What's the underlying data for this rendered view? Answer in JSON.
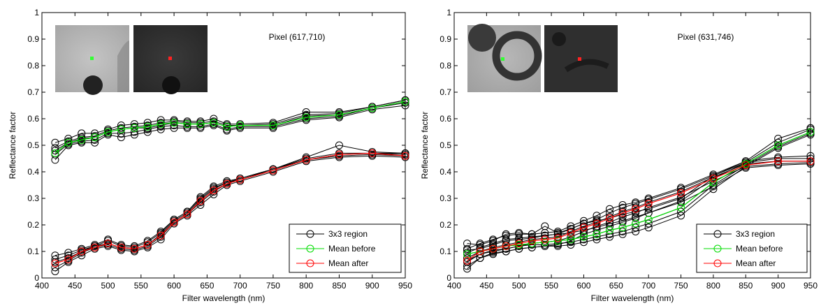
{
  "chart_data": [
    {
      "type": "line",
      "title": "Pixel (617,710)",
      "xlabel": "Filter wavelength (nm)",
      "ylabel": "Reflectance factor",
      "xlim": [
        400,
        950
      ],
      "ylim": [
        0,
        1
      ],
      "xticks": [
        400,
        450,
        500,
        550,
        600,
        650,
        700,
        750,
        800,
        850,
        900,
        950
      ],
      "yticks": [
        0,
        0.1,
        0.2,
        0.3,
        0.4,
        0.5,
        0.6,
        0.7,
        0.8,
        0.9,
        1
      ],
      "x": [
        420,
        440,
        460,
        480,
        500,
        520,
        540,
        560,
        580,
        600,
        620,
        640,
        660,
        680,
        700,
        750,
        800,
        850,
        900,
        950
      ],
      "legend": {
        "placement": "bottom-right",
        "entries": [
          "3x3 region",
          "Mean before",
          "Mean after"
        ]
      },
      "series": [
        {
          "name": "Mean before",
          "color": "#00dd00",
          "values": [
            0.47,
            0.51,
            0.52,
            0.53,
            0.55,
            0.56,
            0.565,
            0.57,
            0.58,
            0.585,
            0.58,
            0.58,
            0.585,
            0.57,
            0.575,
            0.575,
            0.605,
            0.615,
            0.64,
            0.665
          ]
        },
        {
          "name": "Mean after",
          "color": "#ff0000",
          "values": [
            0.055,
            0.07,
            0.1,
            0.115,
            0.13,
            0.115,
            0.11,
            0.125,
            0.16,
            0.21,
            0.24,
            0.29,
            0.33,
            0.355,
            0.37,
            0.405,
            0.445,
            0.465,
            0.47,
            0.46
          ]
        }
      ],
      "region_before": [
        [
          0.445,
          0.5,
          0.51,
          0.51,
          0.54,
          0.53,
          0.54,
          0.55,
          0.56,
          0.565,
          0.565,
          0.565,
          0.575,
          0.555,
          0.565,
          0.565,
          0.595,
          0.605,
          0.635,
          0.65
        ],
        [
          0.465,
          0.505,
          0.515,
          0.52,
          0.545,
          0.545,
          0.55,
          0.56,
          0.57,
          0.575,
          0.57,
          0.57,
          0.58,
          0.56,
          0.57,
          0.57,
          0.6,
          0.61,
          0.64,
          0.66
        ],
        [
          0.48,
          0.51,
          0.525,
          0.53,
          0.55,
          0.56,
          0.565,
          0.565,
          0.575,
          0.585,
          0.58,
          0.58,
          0.585,
          0.57,
          0.575,
          0.575,
          0.61,
          0.615,
          0.64,
          0.665
        ],
        [
          0.49,
          0.515,
          0.53,
          0.535,
          0.555,
          0.565,
          0.57,
          0.575,
          0.585,
          0.59,
          0.585,
          0.585,
          0.59,
          0.575,
          0.575,
          0.58,
          0.615,
          0.62,
          0.645,
          0.67
        ],
        [
          0.51,
          0.525,
          0.545,
          0.545,
          0.56,
          0.575,
          0.58,
          0.585,
          0.595,
          0.595,
          0.59,
          0.59,
          0.6,
          0.58,
          0.58,
          0.585,
          0.625,
          0.625,
          0.645,
          0.67
        ]
      ],
      "region_after": [
        [
          0.025,
          0.06,
          0.085,
          0.11,
          0.12,
          0.105,
          0.1,
          0.115,
          0.145,
          0.205,
          0.235,
          0.275,
          0.315,
          0.35,
          0.365,
          0.4,
          0.44,
          0.455,
          0.46,
          0.455
        ],
        [
          0.04,
          0.065,
          0.095,
          0.115,
          0.125,
          0.11,
          0.105,
          0.12,
          0.155,
          0.21,
          0.24,
          0.285,
          0.325,
          0.355,
          0.37,
          0.405,
          0.445,
          0.46,
          0.465,
          0.46
        ],
        [
          0.06,
          0.075,
          0.1,
          0.12,
          0.13,
          0.115,
          0.11,
          0.125,
          0.165,
          0.215,
          0.245,
          0.295,
          0.335,
          0.36,
          0.37,
          0.41,
          0.445,
          0.465,
          0.47,
          0.465
        ],
        [
          0.07,
          0.085,
          0.105,
          0.12,
          0.14,
          0.12,
          0.115,
          0.135,
          0.17,
          0.22,
          0.25,
          0.3,
          0.34,
          0.36,
          0.375,
          0.41,
          0.45,
          0.47,
          0.47,
          0.47
        ],
        [
          0.085,
          0.095,
          0.11,
          0.125,
          0.145,
          0.125,
          0.12,
          0.14,
          0.175,
          0.22,
          0.25,
          0.305,
          0.345,
          0.365,
          0.375,
          0.41,
          0.455,
          0.5,
          0.475,
          0.47
        ]
      ]
    },
    {
      "type": "line",
      "title": "Pixel (631,746)",
      "xlabel": "Filter wavelength (nm)",
      "ylabel": "Reflectance factor",
      "xlim": [
        400,
        950
      ],
      "ylim": [
        0,
        1
      ],
      "xticks": [
        400,
        450,
        500,
        550,
        600,
        650,
        700,
        750,
        800,
        850,
        900,
        950
      ],
      "yticks": [
        0,
        0.1,
        0.2,
        0.3,
        0.4,
        0.5,
        0.6,
        0.7,
        0.8,
        0.9,
        1
      ],
      "x": [
        420,
        440,
        460,
        480,
        500,
        520,
        540,
        560,
        580,
        600,
        620,
        640,
        660,
        680,
        700,
        750,
        800,
        850,
        900,
        950
      ],
      "legend": {
        "placement": "bottom-right",
        "entries": [
          "3x3 region",
          "Mean before",
          "Mean after"
        ]
      },
      "series": [
        {
          "name": "Mean before",
          "color": "#00dd00",
          "values": [
            0.09,
            0.1,
            0.11,
            0.12,
            0.125,
            0.13,
            0.135,
            0.14,
            0.145,
            0.155,
            0.165,
            0.18,
            0.19,
            0.205,
            0.22,
            0.265,
            0.36,
            0.43,
            0.5,
            0.55
          ]
        },
        {
          "name": "Mean after",
          "color": "#ff0000",
          "values": [
            0.065,
            0.1,
            0.11,
            0.12,
            0.13,
            0.14,
            0.145,
            0.15,
            0.17,
            0.19,
            0.205,
            0.225,
            0.245,
            0.26,
            0.28,
            0.32,
            0.375,
            0.425,
            0.44,
            0.44
          ]
        }
      ],
      "region_before": [
        [
          0.035,
          0.075,
          0.09,
          0.1,
          0.11,
          0.115,
          0.12,
          0.12,
          0.125,
          0.135,
          0.145,
          0.155,
          0.165,
          0.175,
          0.19,
          0.235,
          0.335,
          0.42,
          0.49,
          0.54
        ],
        [
          0.065,
          0.09,
          0.1,
          0.11,
          0.12,
          0.125,
          0.125,
          0.13,
          0.135,
          0.145,
          0.155,
          0.165,
          0.175,
          0.19,
          0.205,
          0.25,
          0.35,
          0.425,
          0.495,
          0.545
        ],
        [
          0.09,
          0.1,
          0.11,
          0.12,
          0.125,
          0.13,
          0.135,
          0.14,
          0.145,
          0.155,
          0.165,
          0.18,
          0.19,
          0.205,
          0.22,
          0.265,
          0.36,
          0.43,
          0.5,
          0.55
        ],
        [
          0.105,
          0.11,
          0.125,
          0.14,
          0.145,
          0.15,
          0.16,
          0.165,
          0.17,
          0.18,
          0.19,
          0.205,
          0.215,
          0.23,
          0.245,
          0.29,
          0.375,
          0.435,
          0.51,
          0.56
        ],
        [
          0.13,
          0.125,
          0.14,
          0.165,
          0.17,
          0.165,
          0.195,
          0.17,
          0.185,
          0.205,
          0.215,
          0.225,
          0.24,
          0.25,
          0.26,
          0.3,
          0.385,
          0.44,
          0.525,
          0.565
        ]
      ],
      "region_after": [
        [
          0.045,
          0.075,
          0.095,
          0.1,
          0.11,
          0.115,
          0.12,
          0.125,
          0.14,
          0.165,
          0.18,
          0.195,
          0.21,
          0.225,
          0.245,
          0.285,
          0.345,
          0.415,
          0.425,
          0.43
        ],
        [
          0.06,
          0.09,
          0.105,
          0.11,
          0.12,
          0.13,
          0.135,
          0.14,
          0.155,
          0.175,
          0.195,
          0.21,
          0.23,
          0.245,
          0.265,
          0.305,
          0.365,
          0.42,
          0.43,
          0.435
        ],
        [
          0.075,
          0.1,
          0.115,
          0.125,
          0.135,
          0.145,
          0.15,
          0.155,
          0.175,
          0.195,
          0.21,
          0.23,
          0.25,
          0.265,
          0.285,
          0.325,
          0.38,
          0.43,
          0.44,
          0.44
        ],
        [
          0.095,
          0.115,
          0.13,
          0.145,
          0.15,
          0.155,
          0.16,
          0.165,
          0.185,
          0.205,
          0.22,
          0.245,
          0.265,
          0.28,
          0.295,
          0.335,
          0.385,
          0.435,
          0.45,
          0.45
        ],
        [
          0.11,
          0.13,
          0.145,
          0.16,
          0.165,
          0.165,
          0.17,
          0.175,
          0.195,
          0.215,
          0.235,
          0.26,
          0.275,
          0.285,
          0.3,
          0.34,
          0.39,
          0.44,
          0.455,
          0.46
        ]
      ]
    }
  ]
}
